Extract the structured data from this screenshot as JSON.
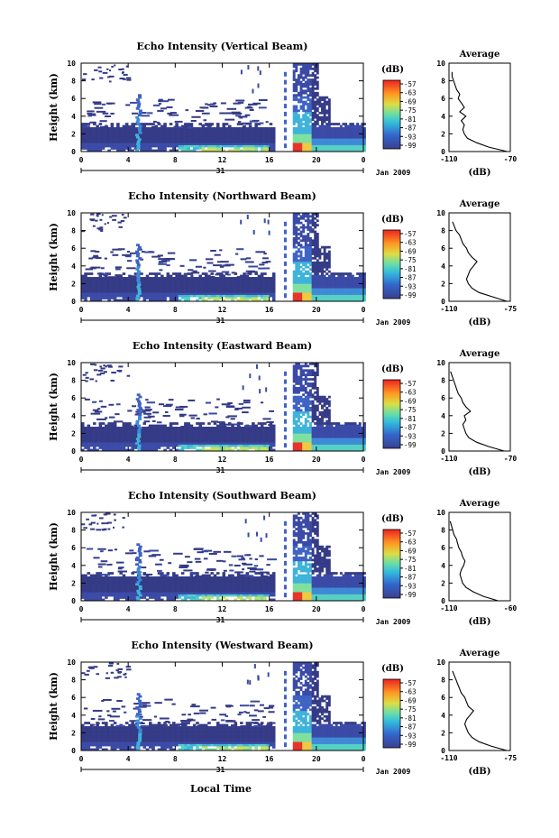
{
  "figure": {
    "x_axis_label": "Local Time",
    "date_label": "Jan 2009",
    "day_label": "31",
    "colorbar_unit": "(dB)",
    "average_title": "Average",
    "average_unit": "(dB)"
  },
  "chart_data": [
    {
      "type": "heatmap",
      "title": "Echo Intensity (Vertical Beam)",
      "ylabel": "Height (km)",
      "x_ticks": [
        "0",
        "4",
        "8",
        "12",
        "16",
        "20",
        "0"
      ],
      "y_ticks": [
        "0",
        "2",
        "4",
        "6",
        "8",
        "10"
      ],
      "ylim": [
        0,
        10
      ],
      "xlim": [
        0,
        24
      ],
      "colorbar": {
        "label": "(dB)",
        "ticks": [
          "-57",
          "-63",
          "-69",
          "-75",
          "-81",
          "-87",
          "-93",
          "-99"
        ]
      },
      "average_profile": {
        "title": "Average",
        "xlabel": "(dB)",
        "x_ticks": [
          "-110",
          "-70"
        ],
        "xlim": [
          -110,
          -70
        ],
        "y_ticks": [
          "0",
          "2",
          "4",
          "6",
          "8",
          "10"
        ],
        "height": [
          0,
          0.5,
          1,
          1.5,
          2,
          2.5,
          3,
          3.5,
          4,
          4.5,
          5,
          5.5,
          6,
          6.5,
          7,
          7.5,
          8,
          8.5,
          9
        ],
        "db": [
          -72,
          -84,
          -92,
          -98,
          -100,
          -101,
          -100,
          -102,
          -99,
          -103,
          -100,
          -102,
          -104,
          -103,
          -105,
          -106,
          -107,
          -108,
          -108
        ]
      }
    },
    {
      "type": "heatmap",
      "title": "Echo Intensity (Northward Beam)",
      "ylabel": "Height (km)",
      "x_ticks": [
        "0",
        "4",
        "8",
        "12",
        "16",
        "20",
        "0"
      ],
      "y_ticks": [
        "0",
        "2",
        "4",
        "6",
        "8",
        "10"
      ],
      "ylim": [
        0,
        10
      ],
      "xlim": [
        0,
        24
      ],
      "colorbar": {
        "label": "(dB)",
        "ticks": [
          "-57",
          "-63",
          "-69",
          "-75",
          "-81",
          "-87",
          "-93",
          "-99"
        ]
      },
      "average_profile": {
        "title": "Average",
        "xlabel": "(dB)",
        "x_ticks": [
          "-110",
          "-75"
        ],
        "xlim": [
          -110,
          -75
        ],
        "y_ticks": [
          "0",
          "2",
          "4",
          "6",
          "8",
          "10"
        ],
        "height": [
          0,
          0.5,
          1,
          1.5,
          2,
          2.5,
          3,
          3.5,
          4,
          4.5,
          5,
          5.5,
          6,
          6.5,
          7,
          7.5,
          8,
          8.5,
          9
        ],
        "db": [
          -77,
          -85,
          -93,
          -97,
          -99,
          -100,
          -99,
          -98,
          -96,
          -94,
          -97,
          -99,
          -100,
          -102,
          -103,
          -104,
          -106,
          -107,
          -108
        ]
      }
    },
    {
      "type": "heatmap",
      "title": "Echo Intensity (Eastward Beam)",
      "ylabel": "Height (km)",
      "x_ticks": [
        "0",
        "4",
        "8",
        "12",
        "16",
        "20",
        "0"
      ],
      "y_ticks": [
        "0",
        "2",
        "4",
        "6",
        "8",
        "10"
      ],
      "ylim": [
        0,
        10
      ],
      "xlim": [
        0,
        24
      ],
      "colorbar": {
        "label": "(dB)",
        "ticks": [
          "-57",
          "-63",
          "-69",
          "-75",
          "-81",
          "-87",
          "-93",
          "-99"
        ]
      },
      "average_profile": {
        "title": "Average",
        "xlabel": "(dB)",
        "x_ticks": [
          "-110",
          "-70"
        ],
        "xlim": [
          -110,
          -70
        ],
        "y_ticks": [
          "0",
          "2",
          "4",
          "6",
          "8",
          "10"
        ],
        "height": [
          0,
          0.5,
          1,
          1.5,
          2,
          2.5,
          3,
          3.5,
          4,
          4.5,
          5,
          5.5,
          6,
          6.5,
          7,
          7.5,
          8,
          8.5,
          9
        ],
        "db": [
          -74,
          -84,
          -92,
          -97,
          -99,
          -100,
          -101,
          -99,
          -100,
          -96,
          -99,
          -101,
          -102,
          -104,
          -105,
          -106,
          -107,
          -108,
          -109
        ]
      }
    },
    {
      "type": "heatmap",
      "title": "Echo Intensity (Southward Beam)",
      "ylabel": "Height (km)",
      "x_ticks": [
        "0",
        "4",
        "8",
        "12",
        "16",
        "20",
        "0"
      ],
      "y_ticks": [
        "0",
        "2",
        "4",
        "6",
        "8",
        "10"
      ],
      "ylim": [
        0,
        10
      ],
      "xlim": [
        0,
        24
      ],
      "colorbar": {
        "label": "(dB)",
        "ticks": [
          "-57",
          "-63",
          "-69",
          "-75",
          "-81",
          "-87",
          "-93",
          "-99"
        ]
      },
      "average_profile": {
        "title": "Average",
        "xlabel": "(dB)",
        "x_ticks": [
          "-110",
          "-60"
        ],
        "xlim": [
          -110,
          -60
        ],
        "y_ticks": [
          "0",
          "2",
          "4",
          "6",
          "8",
          "10"
        ],
        "height": [
          0,
          0.5,
          1,
          1.5,
          2,
          2.5,
          3,
          3.5,
          4,
          4.5,
          5,
          5.5,
          6,
          6.5,
          7,
          7.5,
          8,
          8.5,
          9
        ],
        "db": [
          -70,
          -82,
          -90,
          -96,
          -99,
          -100,
          -101,
          -100,
          -98,
          -97,
          -99,
          -100,
          -102,
          -103,
          -104,
          -106,
          -107,
          -108,
          -109
        ]
      }
    },
    {
      "type": "heatmap",
      "title": "Echo Intensity (Westward Beam)",
      "ylabel": "Height (km)",
      "x_ticks": [
        "0",
        "4",
        "8",
        "12",
        "16",
        "20",
        "0"
      ],
      "y_ticks": [
        "0",
        "2",
        "4",
        "6",
        "8",
        "10"
      ],
      "ylim": [
        0,
        10
      ],
      "xlim": [
        0,
        24
      ],
      "colorbar": {
        "label": "(dB)",
        "ticks": [
          "-57",
          "-63",
          "-69",
          "-75",
          "-81",
          "-87",
          "-93",
          "-99"
        ]
      },
      "average_profile": {
        "title": "Average",
        "xlabel": "(dB)",
        "x_ticks": [
          "-110",
          "-75"
        ],
        "xlim": [
          -110,
          -75
        ],
        "y_ticks": [
          "0",
          "2",
          "4",
          "6",
          "8",
          "10"
        ],
        "height": [
          0,
          0.5,
          1,
          1.5,
          2,
          2.5,
          3,
          3.5,
          4,
          4.5,
          5,
          5.5,
          6,
          6.5,
          7,
          7.5,
          8,
          8.5,
          9
        ],
        "db": [
          -77,
          -86,
          -93,
          -97,
          -99,
          -100,
          -101,
          -100,
          -98,
          -96,
          -99,
          -100,
          -101,
          -103,
          -104,
          -105,
          -106,
          -107,
          -108
        ]
      }
    }
  ]
}
